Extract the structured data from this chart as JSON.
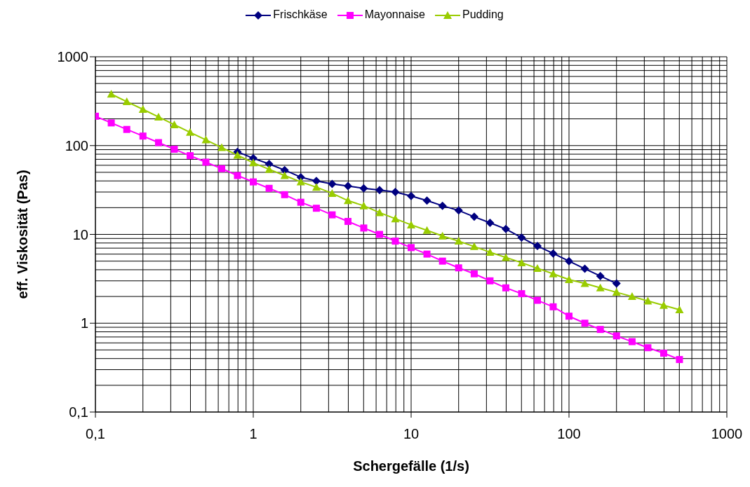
{
  "chart_data": {
    "type": "line",
    "xlabel": "Schergefälle (1/s)",
    "ylabel": "eff. Viskosität (Pas)",
    "log": "xy",
    "grid": true,
    "legend": "top",
    "line_style": "solid",
    "xlim": [
      0.1,
      1000
    ],
    "ylim": [
      0.1,
      1000
    ],
    "xticks": [
      {
        "value": 0.1,
        "label": "0,1"
      },
      1,
      10,
      100,
      1000
    ],
    "yticks": [
      {
        "value": 0.1,
        "label": "0,1"
      },
      1,
      10,
      100,
      1000
    ],
    "series": [
      {
        "name": "Frischkäse",
        "color": "#000080",
        "marker": "diamond",
        "x": [
          0.794,
          1,
          1.26,
          1.58,
          2,
          2.51,
          3.16,
          3.98,
          5.01,
          6.31,
          7.94,
          10,
          12.6,
          15.8,
          20,
          25.1,
          31.6,
          39.8,
          50.1,
          63.1,
          79.4,
          100,
          126,
          158,
          200
        ],
        "values": [
          85,
          72,
          62,
          53,
          44,
          40,
          37,
          35,
          33,
          31.6,
          30,
          27,
          24,
          21,
          18.6,
          15.8,
          13.5,
          11.5,
          9.2,
          7.4,
          6.1,
          5.0,
          4.1,
          3.4,
          2.8
        ]
      },
      {
        "name": "Mayonnaise",
        "color": "#ff00ff",
        "marker": "square",
        "x": [
          0.1,
          0.126,
          0.158,
          0.2,
          0.251,
          0.316,
          0.398,
          0.501,
          0.631,
          0.794,
          1,
          1.26,
          1.58,
          2,
          2.51,
          3.16,
          3.98,
          5.01,
          6.31,
          7.94,
          10,
          12.6,
          15.8,
          20,
          25.1,
          31.6,
          39.8,
          50.1,
          63.1,
          79.4,
          100,
          126,
          158,
          200,
          251,
          316,
          398,
          501
        ],
        "values": [
          214,
          180,
          152,
          128,
          108,
          91,
          77,
          65,
          55,
          46,
          39,
          33,
          28,
          23,
          19.7,
          16.6,
          14,
          11.8,
          10,
          8.4,
          7.1,
          6,
          5,
          4.2,
          3.6,
          3,
          2.5,
          2.15,
          1.81,
          1.53,
          1.2,
          1,
          0.85,
          0.72,
          0.62,
          0.53,
          0.46,
          0.39
        ]
      },
      {
        "name": "Pudding",
        "color": "#99cc00",
        "marker": "triangle",
        "x": [
          0.126,
          0.158,
          0.2,
          0.251,
          0.316,
          0.398,
          0.501,
          0.631,
          0.794,
          1,
          1.26,
          1.58,
          2,
          2.51,
          3.16,
          3.98,
          5.01,
          6.31,
          7.94,
          10,
          12.6,
          15.8,
          20,
          25.1,
          31.6,
          39.8,
          50.1,
          63.1,
          79.4,
          100,
          126,
          158,
          200,
          251,
          316,
          398,
          501
        ],
        "values": [
          380,
          312,
          256,
          210,
          172,
          141,
          116,
          95,
          78,
          64,
          54,
          46,
          39,
          34,
          29,
          24,
          21,
          17.6,
          15,
          12.8,
          11.1,
          9.6,
          8.4,
          7.3,
          6.3,
          5.5,
          4.8,
          4.15,
          3.6,
          3.1,
          2.8,
          2.5,
          2.23,
          2,
          1.78,
          1.59,
          1.42
        ]
      }
    ]
  }
}
